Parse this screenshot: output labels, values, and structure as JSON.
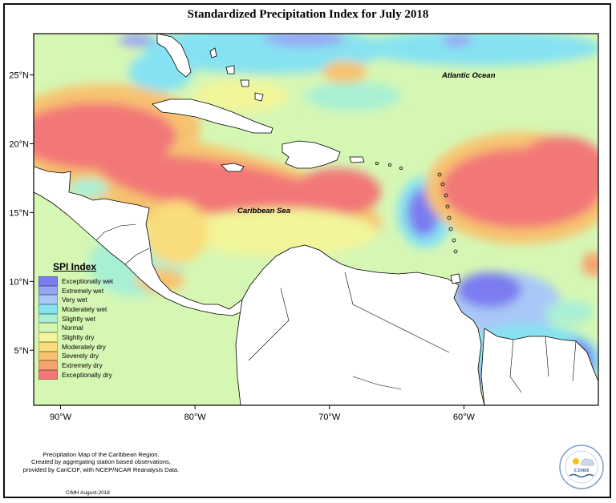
{
  "title": "Standardized Precipitation Index for July 2018",
  "map": {
    "labels": {
      "atlantic": "Atlantic Ocean",
      "caribbean": "Caribbean Sea"
    },
    "lat_ticks": [
      "25°N",
      "20°N",
      "15°N",
      "10°N",
      "5°N"
    ],
    "lon_ticks": [
      "90°W",
      "80°W",
      "70°W",
      "60°W"
    ],
    "extent": {
      "lon_min": -92,
      "lon_max": -50,
      "lat_min": 1,
      "lat_max": 28
    }
  },
  "legend": {
    "title": "SPI Index",
    "items": [
      {
        "label": "Exceptionally wet",
        "color": "#7c7cf0"
      },
      {
        "label": "Extremely wet",
        "color": "#98a4f4"
      },
      {
        "label": "Very wet",
        "color": "#a9c8f7"
      },
      {
        "label": "Moderately wet",
        "color": "#86e2f2"
      },
      {
        "label": "Slightly wet",
        "color": "#a8f0d4"
      },
      {
        "label": "Normal",
        "color": "#d6f7b4"
      },
      {
        "label": "Slightly dry",
        "color": "#f2f59a"
      },
      {
        "label": "Moderately dry",
        "color": "#f9dc7b"
      },
      {
        "label": "Severely dry",
        "color": "#f7c36f"
      },
      {
        "label": "Extremely dry",
        "color": "#f6a46e"
      },
      {
        "label": "Exceptionally dry",
        "color": "#f27878"
      }
    ]
  },
  "footnote": {
    "line1": "Precipitation Map of the Caribbean Region.",
    "line2": "Created by aggregating station based observations,",
    "line3": "provided by CariCOF, with NCEP/NCAR Reanalysis Data."
  },
  "credit": "CIMH August-2018",
  "logo": {
    "name": "CIMH"
  }
}
